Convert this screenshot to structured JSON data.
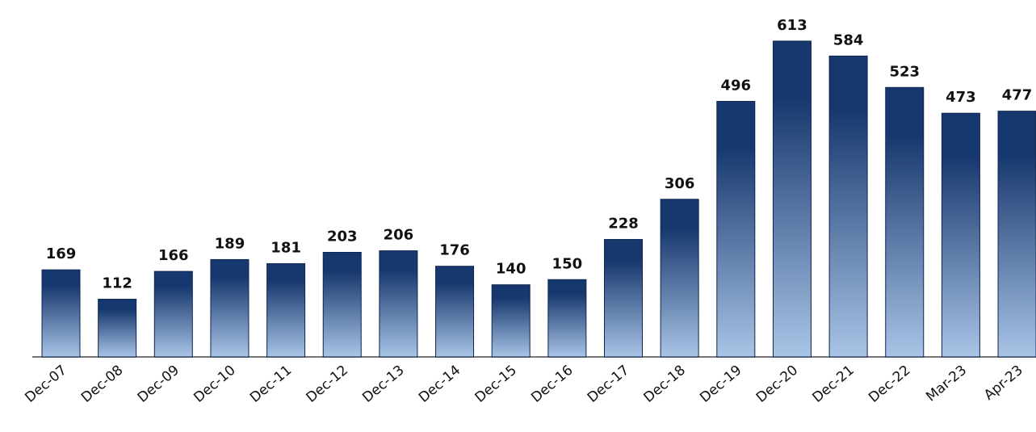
{
  "chart_data": {
    "type": "bar",
    "categories": [
      "Dec-07",
      "Dec-08",
      "Dec-09",
      "Dec-10",
      "Dec-11",
      "Dec-12",
      "Dec-13",
      "Dec-14",
      "Dec-15",
      "Dec-16",
      "Dec-17",
      "Dec-18",
      "Dec-19",
      "Dec-20",
      "Dec-21",
      "Dec-22",
      "Mar-23",
      "Apr-23"
    ],
    "values": [
      169,
      112,
      166,
      189,
      181,
      203,
      206,
      176,
      140,
      150,
      228,
      306,
      496,
      613,
      584,
      523,
      473,
      477
    ],
    "gradient": [
      "#17386e",
      "#a9c4e6"
    ]
  }
}
